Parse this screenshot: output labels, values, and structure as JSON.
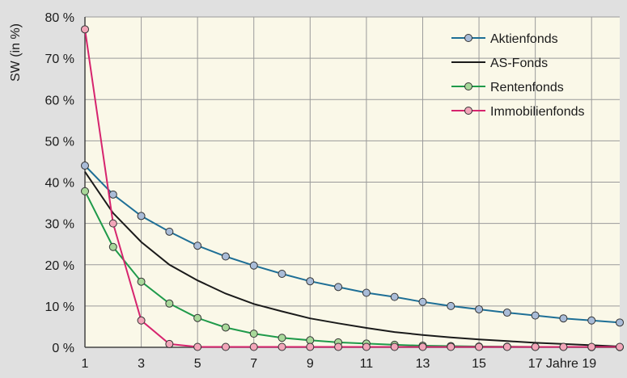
{
  "chart_data": {
    "type": "line",
    "title": "",
    "xlabel": "Jahre",
    "ylabel": "SW (in %)",
    "xlim": [
      1,
      20
    ],
    "ylim": [
      0,
      80
    ],
    "x_ticks": [
      1,
      3,
      5,
      7,
      9,
      11,
      13,
      15,
      17,
      19
    ],
    "x_tick_labels": [
      "1",
      "3",
      "5",
      "7",
      "9",
      "11",
      "13",
      "15",
      "17 Jahre 19"
    ],
    "y_ticks": [
      0,
      10,
      20,
      30,
      40,
      50,
      60,
      70,
      80
    ],
    "y_tick_labels": [
      "0 %",
      "10 %",
      "20 %",
      "30 %",
      "40 %",
      "50 %",
      "60 %",
      "70 %",
      "80 %"
    ],
    "grid": true,
    "legend_position": "top-right",
    "x": [
      1,
      2,
      3,
      4,
      5,
      6,
      7,
      8,
      9,
      10,
      11,
      12,
      13,
      14,
      15,
      16,
      17,
      18,
      19,
      20
    ],
    "series": [
      {
        "name": "Aktienfonds",
        "color": "#1e6f96",
        "marker_fill": "#a9bcd8",
        "markers": true,
        "values": [
          44,
          37,
          31.8,
          28,
          24.6,
          22,
          19.8,
          17.8,
          16,
          14.6,
          13.2,
          12.2,
          11,
          10,
          9.2,
          8.4,
          7.7,
          7,
          6.5,
          6
        ]
      },
      {
        "name": "AS-Fonds",
        "color": "#1a1a1a",
        "markers": false,
        "values": [
          42.5,
          32.5,
          25.5,
          20,
          16.2,
          13,
          10.5,
          8.7,
          7,
          5.8,
          4.7,
          3.7,
          3,
          2.4,
          1.9,
          1.5,
          1.1,
          0.8,
          0.5,
          0.2
        ]
      },
      {
        "name": "Rentenfonds",
        "color": "#1f9a4a",
        "marker_fill": "#a8d89a",
        "markers": true,
        "values": [
          37.8,
          24.3,
          15.9,
          10.6,
          7.1,
          4.8,
          3.3,
          2.3,
          1.7,
          1.2,
          0.9,
          0.6,
          0.4,
          0.3,
          0.2,
          0.15,
          0.1,
          0.1,
          0.05,
          0.05
        ]
      },
      {
        "name": "Immobilienfonds",
        "color": "#d6246e",
        "marker_fill": "#f2a6b9",
        "markers": true,
        "values": [
          77,
          30,
          6.5,
          0.8,
          0.1,
          0.1,
          0.1,
          0.1,
          0.1,
          0.1,
          0.1,
          0.1,
          0.1,
          0.1,
          0.1,
          0.1,
          0.1,
          0.1,
          0.1,
          0.1
        ]
      }
    ]
  }
}
